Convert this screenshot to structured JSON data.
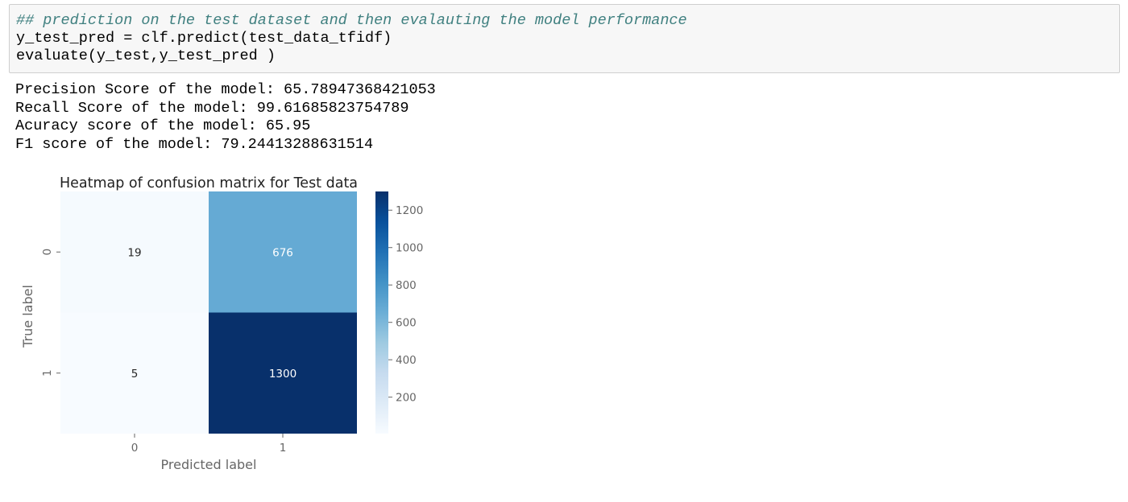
{
  "code_cell": {
    "lines": [
      "## prediction on the test dataset and then evalauting the model performance",
      "y_test_pred = clf.predict(test_data_tfidf)",
      "evaluate(y_test,y_test_pred )"
    ]
  },
  "output": {
    "lines": [
      "Precision Score of the model: 65.78947368421053",
      "Recall Score of the model: 99.61685823754789",
      "Acuracy score of the model: 65.95",
      "F1 score of the model: 79.24413288631514"
    ]
  },
  "chart_data": {
    "type": "heatmap",
    "title": "Heatmap of confusion matrix for Test data",
    "xlabel": "Predicted label",
    "ylabel": "True label",
    "x_ticks": [
      "0",
      "1"
    ],
    "y_ticks": [
      "0",
      "1"
    ],
    "values": [
      [
        19,
        676
      ],
      [
        5,
        1300
      ]
    ],
    "colormap": "Blues",
    "vmin": 5,
    "vmax": 1300,
    "colorbar_ticks": [
      200,
      400,
      600,
      800,
      1000,
      1200
    ],
    "colors": {
      "low": "#f7fbff",
      "high": "#08306b"
    }
  }
}
